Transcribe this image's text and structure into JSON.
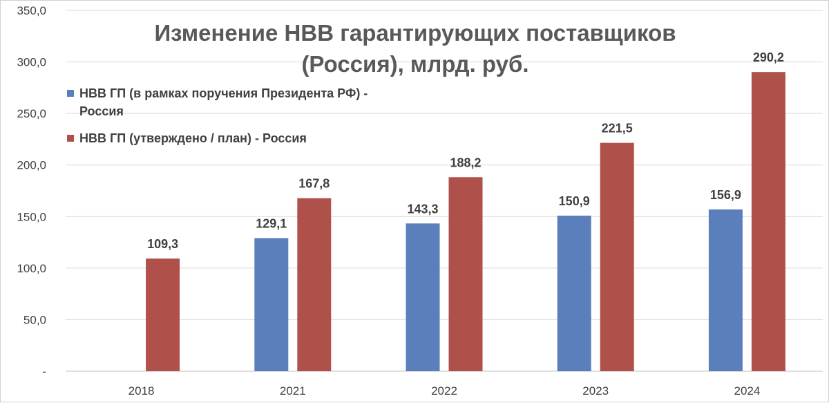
{
  "chart_data": {
    "type": "bar",
    "title_lines": [
      "Изменение НВВ гарантирующих поставщиков",
      "(Россия), млрд. руб."
    ],
    "categories": [
      "2018",
      "2021",
      "2022",
      "2023",
      "2024"
    ],
    "series": [
      {
        "name_lines": [
          "НВВ ГП (в рамках поручения Президента РФ) -",
          "Россия"
        ],
        "color": "#5b7fbb",
        "values": [
          null,
          129.1,
          143.3,
          150.9,
          156.9
        ],
        "labels": [
          "",
          "129,1",
          "143,3",
          "150,9",
          "156,9"
        ]
      },
      {
        "name_lines": [
          "НВВ ГП (утверждено / план) - Россия"
        ],
        "color": "#b0504b",
        "values": [
          109.3,
          167.8,
          188.2,
          221.5,
          290.2
        ],
        "labels": [
          "109,3",
          "167,8",
          "188,2",
          "221,5",
          "290,2"
        ]
      }
    ],
    "yticks": [
      {
        "value": 0,
        "label": "-"
      },
      {
        "value": 50,
        "label": "50,0"
      },
      {
        "value": 100,
        "label": "100,0"
      },
      {
        "value": 150,
        "label": "150,0"
      },
      {
        "value": 200,
        "label": "200,0"
      },
      {
        "value": 250,
        "label": "250,0"
      },
      {
        "value": 300,
        "label": "300,0"
      },
      {
        "value": 350,
        "label": "350,0"
      }
    ],
    "ylim": [
      0,
      350
    ],
    "grid": true,
    "legend_position": "top-left"
  }
}
